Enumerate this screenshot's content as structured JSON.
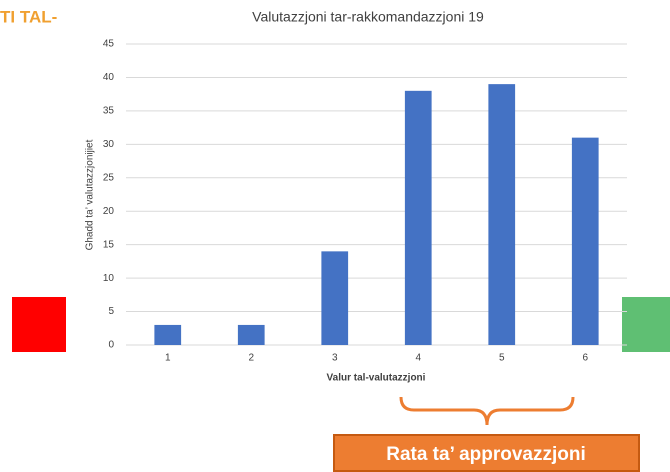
{
  "chart_data": {
    "type": "bar",
    "title": "Valutazzjoni tar-rakkomandazzjoni 19",
    "xlabel": "Valur tal-valutazzjoni",
    "ylabel": "Ghadd ta’ valutazzjonijiet",
    "categories": [
      "1",
      "2",
      "3",
      "4",
      "5",
      "6"
    ],
    "values": [
      3,
      3,
      14,
      38,
      39,
      31
    ],
    "color": "#4472c4",
    "ylim": [
      0,
      45
    ],
    "yticks": [
      0,
      5,
      10,
      15,
      20,
      25,
      30,
      35,
      40,
      45
    ],
    "grid": true,
    "annotations": [
      "TI TAL-",
      "Rata ta’ approvazzjoni"
    ]
  }
}
